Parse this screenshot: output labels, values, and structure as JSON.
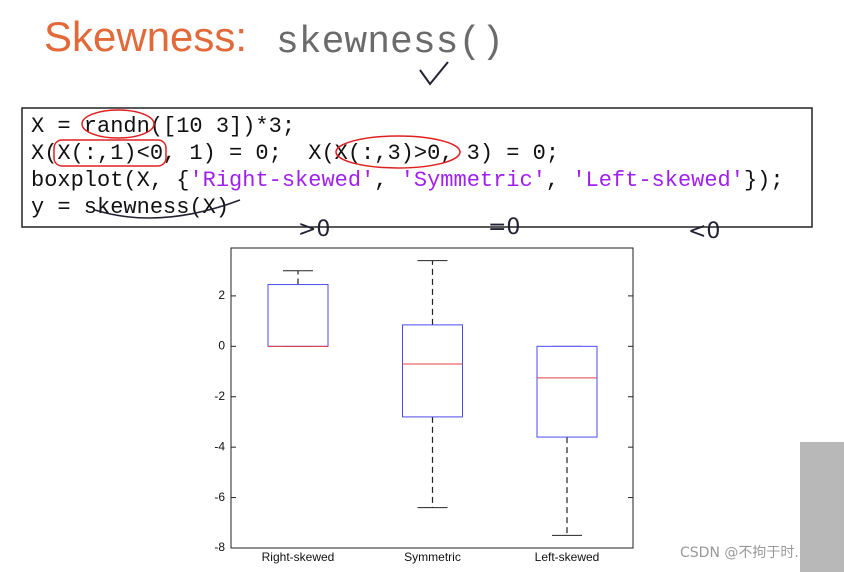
{
  "slide": {
    "title": "Skewness:",
    "title_code": "skewness()",
    "code_lines": [
      [
        {
          "text": "X = randn([10 3])*3;",
          "color": "#111111"
        }
      ],
      [
        {
          "text": "X(X(:,1)<0, 1) = 0;  X(X(:,3)>0, 3) = 0;",
          "color": "#111111"
        }
      ],
      [
        {
          "text": "boxplot(X, {",
          "color": "#111111"
        },
        {
          "text": "'Right-skewed'",
          "color": "#a020f0"
        },
        {
          "text": ", ",
          "color": "#111111"
        },
        {
          "text": "'Symmetric'",
          "color": "#a020f0"
        },
        {
          "text": ", ",
          "color": "#111111"
        },
        {
          "text": "'Left-skewed'",
          "color": "#a020f0"
        },
        {
          "text": "});",
          "color": "#111111"
        }
      ],
      [
        {
          "text": "y = skewness(X)",
          "color": "#111111"
        }
      ]
    ],
    "annotations": [
      ">0",
      "=0",
      "<0"
    ],
    "watermark": "CSDN @不拘于时."
  },
  "chart_data": {
    "type": "boxplot",
    "categories": [
      "Right-skewed",
      "Symmetric",
      "Left-skewed"
    ],
    "boxes": [
      {
        "min": 0,
        "q1": 0,
        "median": 0,
        "q3": 2.45,
        "max": 3.0
      },
      {
        "min": -6.4,
        "q1": -2.8,
        "median": -0.7,
        "q3": 0.85,
        "max": 3.4
      },
      {
        "min": -7.5,
        "q1": -3.6,
        "median": -1.25,
        "q3": 0,
        "max": 0
      }
    ],
    "ylim": [
      -8,
      3.9
    ],
    "yticks": [
      -8,
      -6,
      -4,
      -2,
      0,
      2
    ],
    "box_color": "#4b4bf0",
    "median_color": "#e04040",
    "whisker_color": "#222222"
  }
}
